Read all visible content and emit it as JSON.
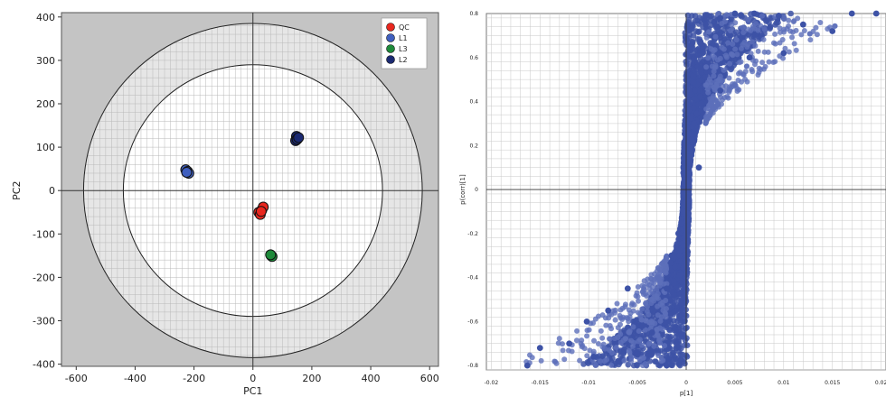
{
  "chart_data": [
    {
      "type": "scatter",
      "title": "",
      "xlabel": "PC1",
      "ylabel": "PC2",
      "xlim": [
        -650,
        630
      ],
      "ylim": [
        -405,
        410
      ],
      "x_ticks": [
        -600,
        -400,
        -200,
        0,
        200,
        400,
        600
      ],
      "y_ticks": [
        -400,
        -300,
        -200,
        -100,
        0,
        100,
        200,
        300,
        400
      ],
      "grid": true,
      "legend_position": "top-right",
      "ellipses": [
        {
          "rx": 575,
          "ry": 385
        },
        {
          "rx": 440,
          "ry": 290
        }
      ],
      "series": [
        {
          "name": "QC",
          "color": "#e8271f",
          "x": [
            30,
            20,
            35,
            25,
            28
          ],
          "y": [
            -45,
            -50,
            -38,
            -55,
            -48
          ]
        },
        {
          "name": "L1",
          "color": "#3f5fbf",
          "x": [
            -228,
            -222,
            -218,
            -225
          ],
          "y": [
            48,
            44,
            40,
            42
          ]
        },
        {
          "name": "L3",
          "color": "#1e8a3a",
          "x": [
            62,
            65,
            60
          ],
          "y": [
            -150,
            -152,
            -148
          ]
        },
        {
          "name": "L2",
          "color": "#1b2a72",
          "x": [
            148,
            152,
            145,
            150,
            155
          ],
          "y": [
            125,
            120,
            115,
            118,
            122
          ]
        }
      ],
      "colors": {
        "outer_bg": "#c4c4c4",
        "ring": "#e6e6e6",
        "inner": "#ffffff"
      }
    },
    {
      "type": "scatter",
      "title": "",
      "xlabel": "p[1]",
      "ylabel": "p(corr)[1]",
      "xlim": [
        -0.0205,
        0.0205
      ],
      "ylim": [
        -0.82,
        0.8
      ],
      "x_ticks": [
        -0.02,
        -0.015,
        -0.01,
        -0.005,
        0,
        0.005,
        0.01,
        0.015,
        0.02
      ],
      "x_tick_labels": [
        "-0.02",
        "-0.015",
        "-0.01",
        "-0.005",
        "0",
        "0.005",
        "0.01",
        "0.015",
        "0.02"
      ],
      "y_ticks": [
        -0.8,
        -0.6,
        -0.4,
        -0.2,
        0,
        0.2,
        0.4,
        0.6,
        0.8
      ],
      "y_tick_labels": [
        "-0.8",
        "-0.6",
        "-0.4",
        "-0.2",
        "0",
        "0.2",
        "0.4",
        "0.6",
        "0.8"
      ],
      "grid": true,
      "point_color": "#3d52a6",
      "series": [
        {
          "name": "",
          "x": [
            0,
            0.0003,
            0.0008,
            0.0015,
            0.002,
            0.0035,
            0.005,
            0.007,
            0.0095,
            0.012,
            0.015,
            0.017,
            0.0195,
            0.0013,
            0.0035,
            0.0065,
            0.01,
            -0.0003,
            -0.0008,
            -0.0015,
            -0.002,
            -0.0035,
            -0.005,
            -0.007,
            -0.0095,
            -0.012,
            -0.015,
            -0.0163,
            -0.002,
            -0.0045,
            -0.008,
            -0.0102,
            -0.006
          ],
          "y": [
            0,
            0.15,
            0.3,
            0.55,
            0.75,
            0.78,
            0.8,
            0.8,
            0.79,
            0.75,
            0.72,
            0.8,
            0.8,
            0.1,
            0.45,
            0.6,
            0.62,
            -0.1,
            -0.2,
            -0.3,
            -0.45,
            -0.65,
            -0.75,
            -0.78,
            -0.76,
            -0.7,
            -0.72,
            -0.8,
            -0.8,
            -0.62,
            -0.55,
            -0.6,
            -0.45
          ]
        }
      ]
    }
  ]
}
